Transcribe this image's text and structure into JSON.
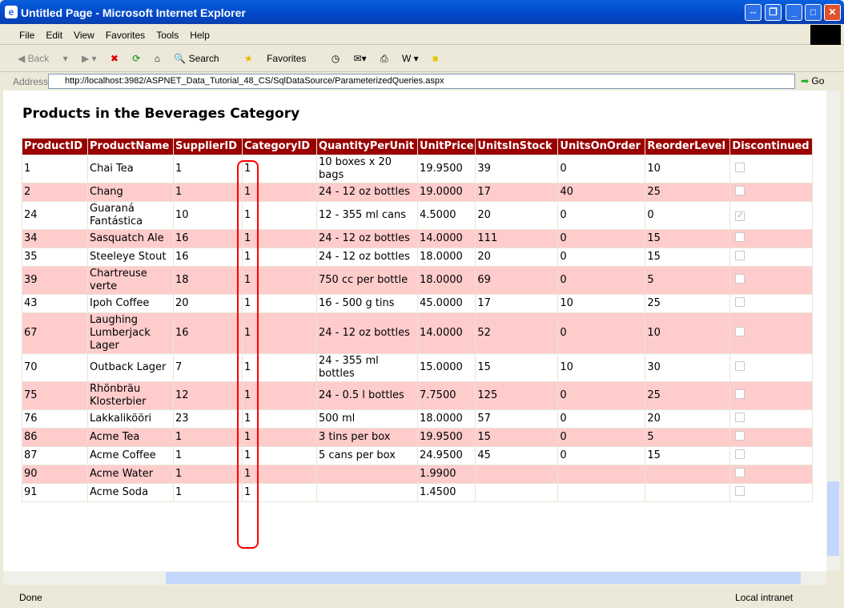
{
  "window": {
    "title": "Untitled Page - Microsoft Internet Explorer"
  },
  "menu": [
    "File",
    "Edit",
    "View",
    "Favorites",
    "Tools",
    "Help"
  ],
  "toolbar": {
    "back": "Back",
    "search": "Search",
    "favorites": "Favorites"
  },
  "address": {
    "label": "Address",
    "url": "http://localhost:3982/ASPNET_Data_Tutorial_48_CS/SqlDataSource/ParameterizedQueries.aspx",
    "go": "Go"
  },
  "page": {
    "heading": "Products in the Beverages Category"
  },
  "table": {
    "columns": [
      "ProductID",
      "ProductName",
      "SupplierID",
      "CategoryID",
      "QuantityPerUnit",
      "UnitPrice",
      "UnitsInStock",
      "UnitsOnOrder",
      "ReorderLevel",
      "Discontinued"
    ],
    "rows": [
      [
        "1",
        "Chai Tea",
        "1",
        "1",
        "10 boxes x 20 bags",
        "19.9500",
        "39",
        "0",
        "10",
        false
      ],
      [
        "2",
        "Chang",
        "1",
        "1",
        "24 - 12 oz bottles",
        "19.0000",
        "17",
        "40",
        "25",
        false
      ],
      [
        "24",
        "Guaraná Fantástica",
        "10",
        "1",
        "12 - 355 ml cans",
        "4.5000",
        "20",
        "0",
        "0",
        true
      ],
      [
        "34",
        "Sasquatch Ale",
        "16",
        "1",
        "24 - 12 oz bottles",
        "14.0000",
        "111",
        "0",
        "15",
        false
      ],
      [
        "35",
        "Steeleye Stout",
        "16",
        "1",
        "24 - 12 oz bottles",
        "18.0000",
        "20",
        "0",
        "15",
        false
      ],
      [
        "39",
        "Chartreuse verte",
        "18",
        "1",
        "750 cc per bottle",
        "18.0000",
        "69",
        "0",
        "5",
        false
      ],
      [
        "43",
        "Ipoh Coffee",
        "20",
        "1",
        "16 - 500 g tins",
        "45.0000",
        "17",
        "10",
        "25",
        false
      ],
      [
        "67",
        "Laughing Lumberjack Lager",
        "16",
        "1",
        "24 - 12 oz bottles",
        "14.0000",
        "52",
        "0",
        "10",
        false
      ],
      [
        "70",
        "Outback Lager",
        "7",
        "1",
        "24 - 355 ml bottles",
        "15.0000",
        "15",
        "10",
        "30",
        false
      ],
      [
        "75",
        "Rhönbräu Klosterbier",
        "12",
        "1",
        "24 - 0.5 l bottles",
        "7.7500",
        "125",
        "0",
        "25",
        false
      ],
      [
        "76",
        "Lakkalikööri",
        "23",
        "1",
        "500 ml",
        "18.0000",
        "57",
        "0",
        "20",
        false
      ],
      [
        "86",
        "Acme Tea",
        "1",
        "1",
        "3 tins per box",
        "19.9500",
        "15",
        "0",
        "5",
        false
      ],
      [
        "87",
        "Acme Coffee",
        "1",
        "1",
        "5 cans per box",
        "24.9500",
        "45",
        "0",
        "15",
        false
      ],
      [
        "90",
        "Acme Water",
        "1",
        "1",
        "",
        "1.9900",
        "",
        "",
        "",
        false
      ],
      [
        "91",
        "Acme Soda",
        "1",
        "1",
        "",
        "1.4500",
        "",
        "",
        "",
        false
      ]
    ]
  },
  "status": {
    "text": "Done",
    "zone": "Local intranet"
  },
  "colors": {
    "header": "#990000",
    "alt_row": "#ffcccc",
    "highlight": "#ff0000"
  }
}
